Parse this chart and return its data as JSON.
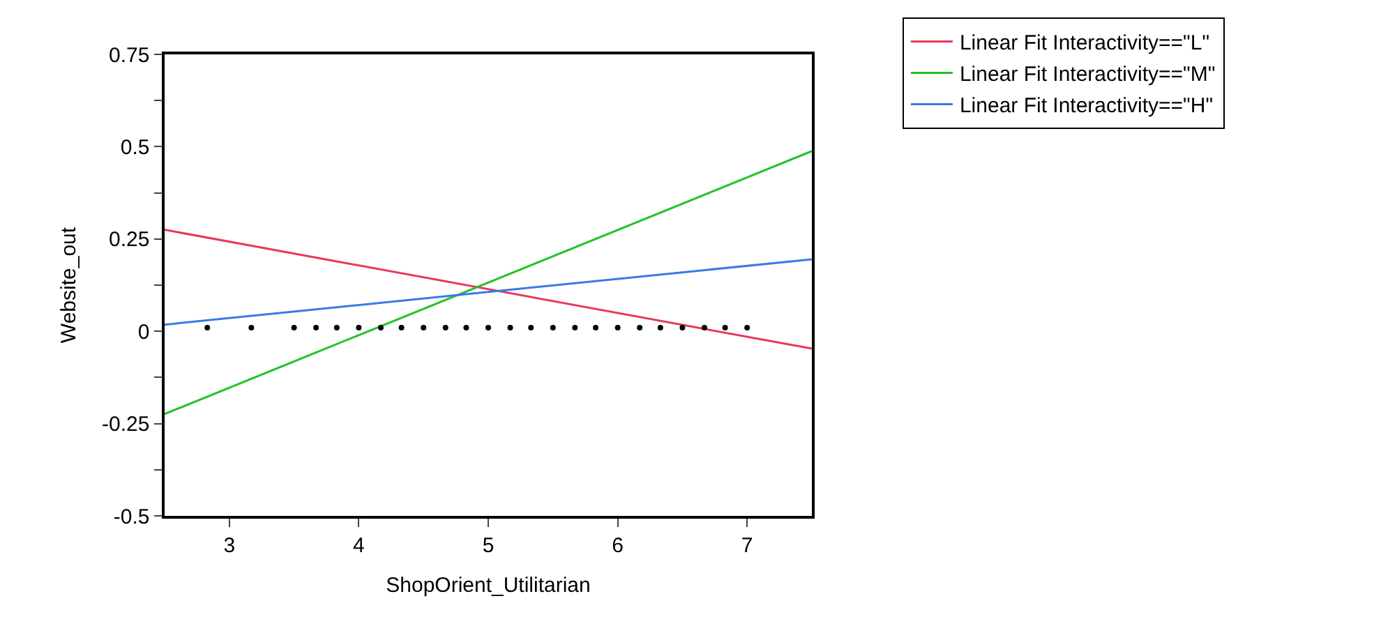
{
  "chart_data": {
    "type": "line",
    "xlabel": "ShopOrient_Utilitarian",
    "ylabel": "Website_out",
    "xlim": [
      2.5,
      7.5
    ],
    "xticks": [
      3,
      4,
      5,
      6,
      7
    ],
    "ylim": [
      -0.5,
      0.75
    ],
    "yticks": [
      -0.5,
      {
        "value": -0.375,
        "label": null
      },
      -0.25,
      {
        "value": -0.125,
        "label": null
      },
      0,
      {
        "value": 0.125,
        "label": null
      },
      0.25,
      {
        "value": 0.375,
        "label": null
      },
      0.5,
      {
        "value": 0.625,
        "label": null
      },
      0.75
    ],
    "legend": "top right",
    "line_style": "solid",
    "series": [
      {
        "name": "Linear Fit Interactivity==\"L\"",
        "color": "#e8385a",
        "x": [
          2.5,
          7.5
        ],
        "values": [
          0.275,
          -0.047
        ]
      },
      {
        "name": "Linear Fit Interactivity==\"M\"",
        "color": "#22c22a",
        "x": [
          2.5,
          7.5
        ],
        "values": [
          -0.224,
          0.488
        ]
      },
      {
        "name": "Linear Fit Interactivity==\"H\"",
        "color": "#3b78e7",
        "x": [
          2.5,
          7.5
        ],
        "values": [
          0.018,
          0.195
        ]
      },
      {
        "type": "scatter",
        "marker": "circle",
        "color": "#000000",
        "x": [
          2.83,
          3.17,
          3.5,
          3.67,
          3.83,
          4.0,
          4.17,
          4.33,
          4.5,
          4.67,
          4.83,
          5.0,
          5.17,
          5.33,
          5.5,
          5.67,
          5.83,
          6.0,
          6.17,
          6.33,
          6.5,
          6.67,
          6.83,
          7.0
        ],
        "values": [
          0.01,
          0.01,
          0.01,
          0.01,
          0.01,
          0.01,
          0.01,
          0.01,
          0.01,
          0.01,
          0.01,
          0.01,
          0.01,
          0.01,
          0.01,
          0.01,
          0.01,
          0.01,
          0.01,
          0.01,
          0.01,
          0.01,
          0.01,
          0.01
        ]
      }
    ]
  }
}
